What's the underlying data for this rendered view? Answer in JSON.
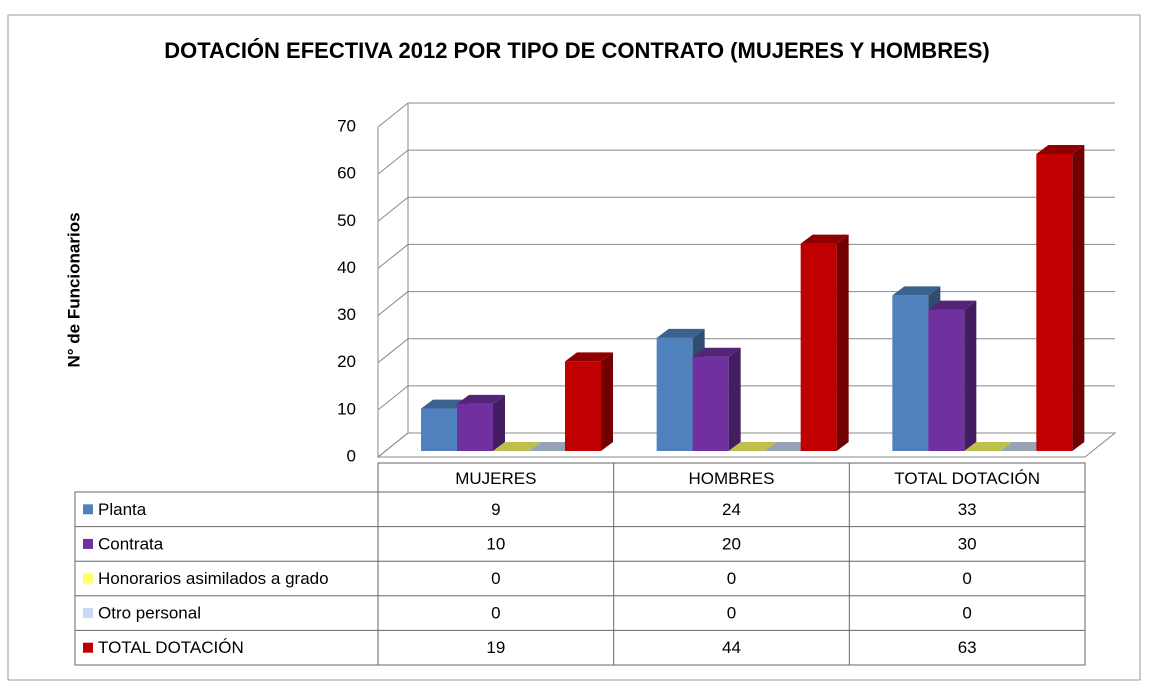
{
  "chart_data": {
    "type": "bar3d",
    "title": "DOTACIÓN EFECTIVA 2012 POR TIPO DE CONTRATO (MUJERES Y HOMBRES)",
    "y_label": "N° de Funcionarios",
    "categories": [
      "MUJERES",
      "HOMBRES",
      "TOTAL DOTACIÓN"
    ],
    "series": [
      {
        "name": "Planta",
        "color": "#4f81bd",
        "values": [
          9,
          24,
          33
        ]
      },
      {
        "name": "Contrata",
        "color": "#7030a0",
        "values": [
          10,
          20,
          30
        ]
      },
      {
        "name": "Honorarios asimilados a grado",
        "color": "#ffff66",
        "values": [
          0,
          0,
          0
        ]
      },
      {
        "name": "Otro personal",
        "color": "#c6d9f1",
        "values": [
          0,
          0,
          0
        ]
      },
      {
        "name": "TOTAL DOTACIÓN",
        "color": "#c00000",
        "values": [
          19,
          44,
          63
        ]
      }
    ],
    "ylim": [
      0,
      70
    ],
    "yticks": [
      0,
      10,
      20,
      30,
      40,
      50,
      60,
      70
    ],
    "grid": true
  }
}
